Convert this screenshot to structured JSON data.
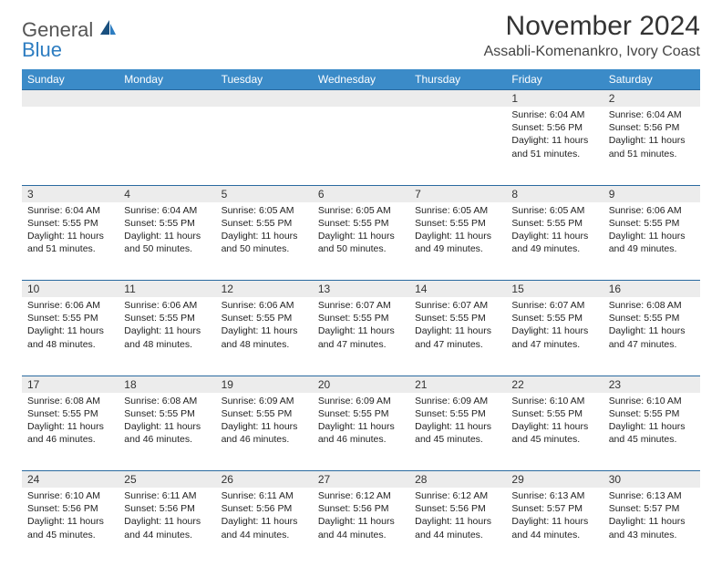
{
  "logo": {
    "word1": "General",
    "word2": "Blue"
  },
  "title": "November 2024",
  "subtitle": "Assabli-Komenankro, Ivory Coast",
  "colors": {
    "header_bg": "#3b8bc8",
    "header_text": "#ffffff",
    "rule": "#2a6aa0",
    "daynum_bg": "#ececec",
    "logo_gray": "#555555",
    "logo_blue": "#2d7dc1"
  },
  "day_labels": [
    "Sunday",
    "Monday",
    "Tuesday",
    "Wednesday",
    "Thursday",
    "Friday",
    "Saturday"
  ],
  "weeks": [
    [
      {
        "n": "",
        "sr": "",
        "ss": "",
        "dl": "",
        "dl2": ""
      },
      {
        "n": "",
        "sr": "",
        "ss": "",
        "dl": "",
        "dl2": ""
      },
      {
        "n": "",
        "sr": "",
        "ss": "",
        "dl": "",
        "dl2": ""
      },
      {
        "n": "",
        "sr": "",
        "ss": "",
        "dl": "",
        "dl2": ""
      },
      {
        "n": "",
        "sr": "",
        "ss": "",
        "dl": "",
        "dl2": ""
      },
      {
        "n": "1",
        "sr": "Sunrise: 6:04 AM",
        "ss": "Sunset: 5:56 PM",
        "dl": "Daylight: 11 hours",
        "dl2": "and 51 minutes."
      },
      {
        "n": "2",
        "sr": "Sunrise: 6:04 AM",
        "ss": "Sunset: 5:56 PM",
        "dl": "Daylight: 11 hours",
        "dl2": "and 51 minutes."
      }
    ],
    [
      {
        "n": "3",
        "sr": "Sunrise: 6:04 AM",
        "ss": "Sunset: 5:55 PM",
        "dl": "Daylight: 11 hours",
        "dl2": "and 51 minutes."
      },
      {
        "n": "4",
        "sr": "Sunrise: 6:04 AM",
        "ss": "Sunset: 5:55 PM",
        "dl": "Daylight: 11 hours",
        "dl2": "and 50 minutes."
      },
      {
        "n": "5",
        "sr": "Sunrise: 6:05 AM",
        "ss": "Sunset: 5:55 PM",
        "dl": "Daylight: 11 hours",
        "dl2": "and 50 minutes."
      },
      {
        "n": "6",
        "sr": "Sunrise: 6:05 AM",
        "ss": "Sunset: 5:55 PM",
        "dl": "Daylight: 11 hours",
        "dl2": "and 50 minutes."
      },
      {
        "n": "7",
        "sr": "Sunrise: 6:05 AM",
        "ss": "Sunset: 5:55 PM",
        "dl": "Daylight: 11 hours",
        "dl2": "and 49 minutes."
      },
      {
        "n": "8",
        "sr": "Sunrise: 6:05 AM",
        "ss": "Sunset: 5:55 PM",
        "dl": "Daylight: 11 hours",
        "dl2": "and 49 minutes."
      },
      {
        "n": "9",
        "sr": "Sunrise: 6:06 AM",
        "ss": "Sunset: 5:55 PM",
        "dl": "Daylight: 11 hours",
        "dl2": "and 49 minutes."
      }
    ],
    [
      {
        "n": "10",
        "sr": "Sunrise: 6:06 AM",
        "ss": "Sunset: 5:55 PM",
        "dl": "Daylight: 11 hours",
        "dl2": "and 48 minutes."
      },
      {
        "n": "11",
        "sr": "Sunrise: 6:06 AM",
        "ss": "Sunset: 5:55 PM",
        "dl": "Daylight: 11 hours",
        "dl2": "and 48 minutes."
      },
      {
        "n": "12",
        "sr": "Sunrise: 6:06 AM",
        "ss": "Sunset: 5:55 PM",
        "dl": "Daylight: 11 hours",
        "dl2": "and 48 minutes."
      },
      {
        "n": "13",
        "sr": "Sunrise: 6:07 AM",
        "ss": "Sunset: 5:55 PM",
        "dl": "Daylight: 11 hours",
        "dl2": "and 47 minutes."
      },
      {
        "n": "14",
        "sr": "Sunrise: 6:07 AM",
        "ss": "Sunset: 5:55 PM",
        "dl": "Daylight: 11 hours",
        "dl2": "and 47 minutes."
      },
      {
        "n": "15",
        "sr": "Sunrise: 6:07 AM",
        "ss": "Sunset: 5:55 PM",
        "dl": "Daylight: 11 hours",
        "dl2": "and 47 minutes."
      },
      {
        "n": "16",
        "sr": "Sunrise: 6:08 AM",
        "ss": "Sunset: 5:55 PM",
        "dl": "Daylight: 11 hours",
        "dl2": "and 47 minutes."
      }
    ],
    [
      {
        "n": "17",
        "sr": "Sunrise: 6:08 AM",
        "ss": "Sunset: 5:55 PM",
        "dl": "Daylight: 11 hours",
        "dl2": "and 46 minutes."
      },
      {
        "n": "18",
        "sr": "Sunrise: 6:08 AM",
        "ss": "Sunset: 5:55 PM",
        "dl": "Daylight: 11 hours",
        "dl2": "and 46 minutes."
      },
      {
        "n": "19",
        "sr": "Sunrise: 6:09 AM",
        "ss": "Sunset: 5:55 PM",
        "dl": "Daylight: 11 hours",
        "dl2": "and 46 minutes."
      },
      {
        "n": "20",
        "sr": "Sunrise: 6:09 AM",
        "ss": "Sunset: 5:55 PM",
        "dl": "Daylight: 11 hours",
        "dl2": "and 46 minutes."
      },
      {
        "n": "21",
        "sr": "Sunrise: 6:09 AM",
        "ss": "Sunset: 5:55 PM",
        "dl": "Daylight: 11 hours",
        "dl2": "and 45 minutes."
      },
      {
        "n": "22",
        "sr": "Sunrise: 6:10 AM",
        "ss": "Sunset: 5:55 PM",
        "dl": "Daylight: 11 hours",
        "dl2": "and 45 minutes."
      },
      {
        "n": "23",
        "sr": "Sunrise: 6:10 AM",
        "ss": "Sunset: 5:55 PM",
        "dl": "Daylight: 11 hours",
        "dl2": "and 45 minutes."
      }
    ],
    [
      {
        "n": "24",
        "sr": "Sunrise: 6:10 AM",
        "ss": "Sunset: 5:56 PM",
        "dl": "Daylight: 11 hours",
        "dl2": "and 45 minutes."
      },
      {
        "n": "25",
        "sr": "Sunrise: 6:11 AM",
        "ss": "Sunset: 5:56 PM",
        "dl": "Daylight: 11 hours",
        "dl2": "and 44 minutes."
      },
      {
        "n": "26",
        "sr": "Sunrise: 6:11 AM",
        "ss": "Sunset: 5:56 PM",
        "dl": "Daylight: 11 hours",
        "dl2": "and 44 minutes."
      },
      {
        "n": "27",
        "sr": "Sunrise: 6:12 AM",
        "ss": "Sunset: 5:56 PM",
        "dl": "Daylight: 11 hours",
        "dl2": "and 44 minutes."
      },
      {
        "n": "28",
        "sr": "Sunrise: 6:12 AM",
        "ss": "Sunset: 5:56 PM",
        "dl": "Daylight: 11 hours",
        "dl2": "and 44 minutes."
      },
      {
        "n": "29",
        "sr": "Sunrise: 6:13 AM",
        "ss": "Sunset: 5:57 PM",
        "dl": "Daylight: 11 hours",
        "dl2": "and 44 minutes."
      },
      {
        "n": "30",
        "sr": "Sunrise: 6:13 AM",
        "ss": "Sunset: 5:57 PM",
        "dl": "Daylight: 11 hours",
        "dl2": "and 43 minutes."
      }
    ]
  ]
}
